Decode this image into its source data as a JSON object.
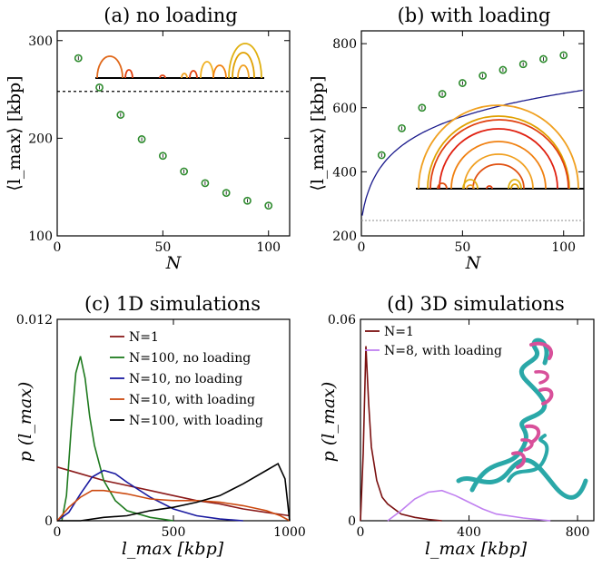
{
  "chart_data": [
    {
      "type": "scatter",
      "title": "(a) no loading",
      "xlabel": "N",
      "ylabel": "⟨l_max⟩ [kbp]",
      "xlim": [
        0,
        110
      ],
      "ylim": [
        100,
        310
      ],
      "xticks": [
        "0",
        "50",
        "100"
      ],
      "yticks": [
        "100",
        "200",
        "300"
      ],
      "reference_line": {
        "y": 248,
        "style": "dotted"
      },
      "series": [
        {
          "x": [
            10,
            20,
            30,
            40,
            50,
            60,
            70,
            80,
            90,
            100
          ],
          "y": [
            282,
            252,
            224,
            199,
            182,
            166,
            154,
            144,
            136,
            131
          ],
          "color": "#2e8b2e"
        }
      ]
    },
    {
      "type": "scatter",
      "title": "(b) with loading",
      "xlabel": "N",
      "ylabel": "⟨l_max⟩ [kbp]",
      "xlim": [
        0,
        110
      ],
      "ylim": [
        200,
        840
      ],
      "xticks": [
        "0",
        "50",
        "100"
      ],
      "yticks": [
        "200",
        "400",
        "600",
        "800"
      ],
      "reference_line": {
        "y": 248,
        "style": "dotted"
      },
      "series": [
        {
          "x": [
            10,
            20,
            30,
            40,
            50,
            60,
            70,
            80,
            90,
            100
          ],
          "y": [
            452,
            536,
            600,
            643,
            677,
            700,
            718,
            736,
            752,
            764
          ],
          "color": "#2e8b2e"
        }
      ],
      "fit_curve": {
        "color": "#1a1a8c"
      }
    },
    {
      "type": "line",
      "title": "(c) 1D simulations",
      "xlabel": "l_max [kbp]",
      "ylabel": "p (l_max)",
      "xlim": [
        0,
        1000
      ],
      "ylim": [
        0,
        0.012
      ],
      "xticks": [
        "0",
        "500",
        "1000"
      ],
      "yticks": [
        "0",
        "0.012"
      ],
      "legend_position": "top-right",
      "series": [
        {
          "name": "N=1",
          "color": "#8b1a1a",
          "x": [
            0,
            100,
            200,
            300,
            400,
            500,
            600,
            700,
            800,
            900,
            1000
          ],
          "y": [
            0.0032,
            0.0028,
            0.0024,
            0.0021,
            0.0018,
            0.0015,
            0.0012,
            0.001,
            0.0007,
            0.0005,
            0.0003
          ]
        },
        {
          "name": "N=100, no loading",
          "color": "#1e7a1e",
          "x": [
            20,
            40,
            60,
            80,
            100,
            120,
            140,
            160,
            200,
            250,
            300,
            400,
            500
          ],
          "y": [
            0.0,
            0.0015,
            0.0055,
            0.0088,
            0.0098,
            0.0085,
            0.0062,
            0.0045,
            0.0024,
            0.0012,
            0.0006,
            0.0002,
            0.0
          ]
        },
        {
          "name": "N=10, no loading",
          "color": "#1a1aa0",
          "x": [
            0,
            50,
            100,
            150,
            200,
            250,
            300,
            400,
            500,
            600,
            700,
            800
          ],
          "y": [
            0.0,
            0.0005,
            0.0016,
            0.0026,
            0.003,
            0.0028,
            0.0023,
            0.0014,
            0.0007,
            0.0003,
            0.0001,
            0.0
          ]
        },
        {
          "name": "N=10, with loading",
          "color": "#cc4a10",
          "x": [
            0,
            50,
            100,
            150,
            200,
            300,
            400,
            500,
            600,
            700,
            800,
            900,
            960,
            1000
          ],
          "y": [
            0.0,
            0.0008,
            0.0014,
            0.0018,
            0.0018,
            0.0016,
            0.0013,
            0.0012,
            0.0012,
            0.0011,
            0.0009,
            0.0006,
            0.0003,
            0.0
          ]
        },
        {
          "name": "N=100, with loading",
          "color": "#000000",
          "x": [
            0,
            100,
            200,
            300,
            400,
            500,
            600,
            700,
            800,
            900,
            950,
            980,
            1000
          ],
          "y": [
            0.0,
            0.0,
            0.0002,
            0.0003,
            0.0006,
            0.0008,
            0.0011,
            0.0015,
            0.0022,
            0.003,
            0.0034,
            0.0025,
            0.0
          ]
        }
      ]
    },
    {
      "type": "line",
      "title": "(d) 3D simulations",
      "xlabel": "l_max [kbp]",
      "ylabel": "p (l_max)",
      "xlim": [
        0,
        860
      ],
      "ylim": [
        0,
        0.06
      ],
      "xticks": [
        "0",
        "400",
        "800"
      ],
      "yticks": [
        "0",
        "0.06"
      ],
      "legend_position": "top-left",
      "series": [
        {
          "name": "N=1",
          "color": "#7a1010",
          "x": [
            0,
            10,
            20,
            30,
            40,
            60,
            80,
            100,
            150,
            200,
            250,
            300
          ],
          "y": [
            0.0,
            0.02,
            0.052,
            0.035,
            0.022,
            0.012,
            0.007,
            0.005,
            0.002,
            0.001,
            0.0004,
            0.0
          ]
        },
        {
          "name": "N=8, with loading",
          "color": "#c080f0",
          "x": [
            100,
            150,
            200,
            250,
            300,
            350,
            400,
            450,
            500,
            600,
            700
          ],
          "y": [
            0.0,
            0.003,
            0.0065,
            0.0085,
            0.009,
            0.0075,
            0.0055,
            0.0035,
            0.002,
            0.0008,
            0.0
          ]
        }
      ]
    }
  ]
}
